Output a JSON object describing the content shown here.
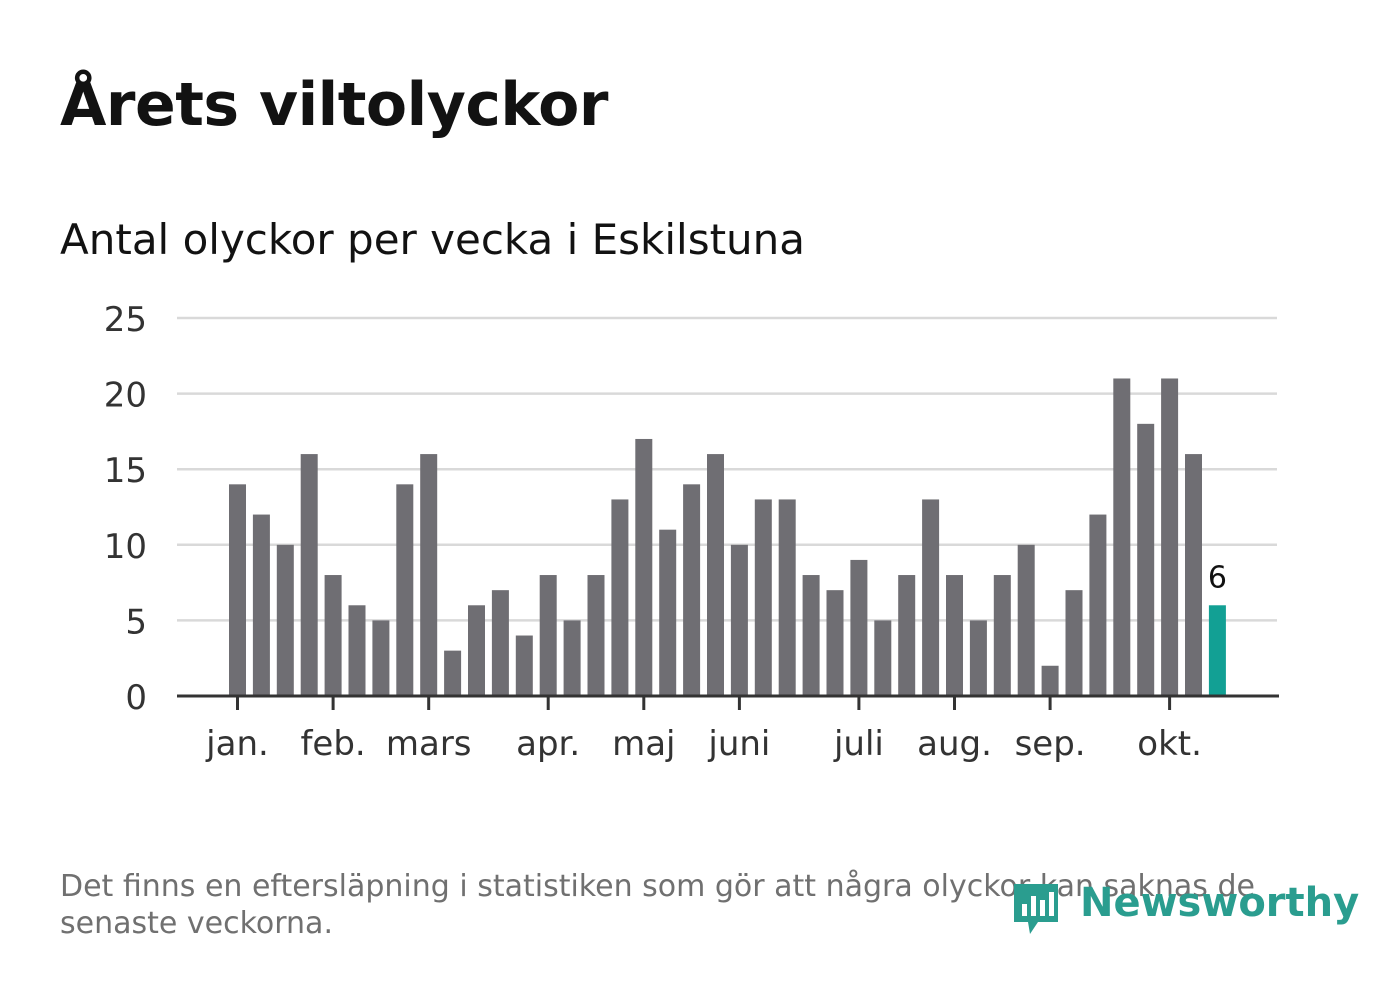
{
  "title": "Årets viltolyckor",
  "subtitle": "Antal olyckor per vecka i Eskilstuna",
  "note": "Det finns en eftersläpning i statistiken som gör att några olyckor kan saknas de senaste veckorna.",
  "brand": {
    "name": "Newsworthy",
    "color": "#2a9d8f"
  },
  "colors": {
    "bar": "#6f6e73",
    "highlight": "#12a094",
    "grid": "#d9d9d9",
    "axis": "#333333"
  },
  "chart_data": {
    "type": "bar",
    "title": "",
    "xlabel": "",
    "ylabel": "",
    "ylim": [
      0,
      25
    ],
    "yticks": [
      0,
      5,
      10,
      15,
      20,
      25
    ],
    "grid": true,
    "months": [
      {
        "label": "jan.",
        "week": 1
      },
      {
        "label": "feb.",
        "week": 5
      },
      {
        "label": "mars",
        "week": 9
      },
      {
        "label": "apr.",
        "week": 14
      },
      {
        "label": "maj",
        "week": 18
      },
      {
        "label": "juni",
        "week": 22
      },
      {
        "label": "juli",
        "week": 27
      },
      {
        "label": "aug.",
        "week": 31
      },
      {
        "label": "sep.",
        "week": 35
      },
      {
        "label": "okt.",
        "week": 40
      }
    ],
    "series": [
      {
        "weeks": [
          1,
          2,
          3,
          4,
          5,
          6,
          7,
          8,
          9,
          10,
          11,
          12,
          13,
          14,
          15,
          16,
          17,
          18,
          19,
          20,
          21,
          22,
          23,
          24,
          25,
          26,
          27,
          28,
          29,
          30,
          31,
          32,
          33,
          34,
          35,
          36,
          37,
          38,
          39,
          40,
          41,
          42
        ],
        "values": [
          14,
          12,
          10,
          16,
          8,
          6,
          5,
          14,
          16,
          3,
          6,
          7,
          4,
          8,
          5,
          8,
          13,
          17,
          11,
          14,
          16,
          10,
          13,
          13,
          8,
          7,
          9,
          5,
          8,
          13,
          8,
          5,
          8,
          10,
          2,
          7,
          12,
          21,
          18,
          21,
          16,
          6
        ]
      }
    ],
    "highlight": {
      "week": 42,
      "value": 6,
      "label": "6"
    }
  }
}
